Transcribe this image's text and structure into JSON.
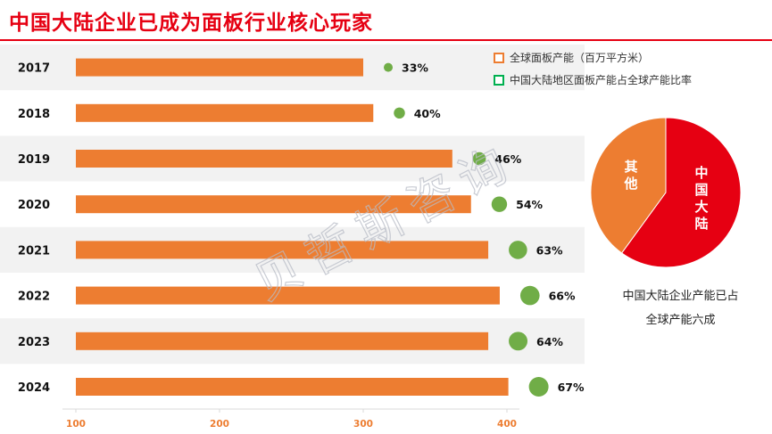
{
  "title": "中国大陆企业已成为面板行业核心玩家",
  "watermark": "贝哲斯咨询",
  "legend": {
    "capacity": "全球面板产能（百万平方米）",
    "share": "中国大陆地区面板产能占全球产能比率"
  },
  "colors": {
    "bar": "#ed7d31",
    "dot": "#70ad47",
    "pie_china": "#e60012",
    "pie_other": "#ed7d31",
    "row_band": "#f2f2f2",
    "title": "#e60012"
  },
  "chart_data": {
    "type": "bar",
    "orientation": "horizontal",
    "categories": [
      "2017",
      "2018",
      "2019",
      "2020",
      "2021",
      "2022",
      "2023",
      "2024"
    ],
    "series": [
      {
        "name": "全球面板产能（百万平方米）",
        "values": [
          300,
          307,
          362,
          375,
          387,
          395,
          387,
          401
        ]
      },
      {
        "name": "中国大陆地区面板产能占全球产能比率",
        "values": [
          33,
          40,
          46,
          54,
          63,
          66,
          64,
          67
        ],
        "labels": [
          "33%",
          "40%",
          "46%",
          "54%",
          "63%",
          "66%",
          "64%",
          "67%"
        ]
      }
    ],
    "x_ticks": [
      "100",
      "200",
      "300",
      "400"
    ],
    "xlim": [
      100,
      410
    ]
  },
  "pie": {
    "slices": [
      {
        "label": "中国大陆",
        "value": 60
      },
      {
        "label": "其他",
        "value": 40
      }
    ],
    "caption_lines": [
      "中国大陆企业产能已占",
      "全球产能六成"
    ]
  }
}
